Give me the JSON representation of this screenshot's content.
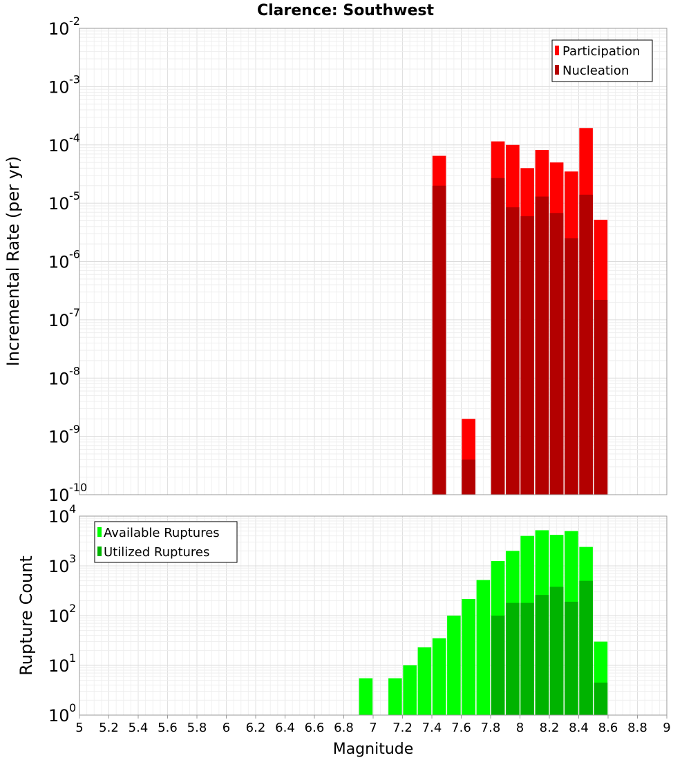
{
  "chart_data": [
    {
      "type": "bar",
      "title": "Clarence: Southwest",
      "xlabel": "",
      "ylabel": "Incremental Rate (per yr)",
      "yscale": "log",
      "ylim_exp": [
        -10,
        -2
      ],
      "xlim": [
        5,
        9
      ],
      "grid": true,
      "legend": "top-right",
      "x": [
        7.45,
        7.65,
        7.85,
        7.95,
        8.05,
        8.15,
        8.25,
        8.35,
        8.45,
        8.55
      ],
      "series": [
        {
          "name": "Participation",
          "color": "#ff0000",
          "values": [
            6.5e-05,
            2e-09,
            0.000115,
            0.0001,
            4e-05,
            8.2e-05,
            5e-05,
            3.5e-05,
            0.000195,
            5.2e-06
          ]
        },
        {
          "name": "Nucleation",
          "color": "#b30000",
          "values": [
            2e-05,
            4e-10,
            2.7e-05,
            8.5e-06,
            6e-06,
            1.3e-05,
            6.8e-06,
            2.5e-06,
            1.4e-05,
            2.2e-07
          ]
        }
      ]
    },
    {
      "type": "bar",
      "xlabel": "Magnitude",
      "ylabel": "Rupture Count",
      "yscale": "log",
      "ylim_exp": [
        0,
        4
      ],
      "xlim": [
        5,
        9
      ],
      "grid": true,
      "legend": "top-left",
      "x": [
        6.95,
        7.15,
        7.25,
        7.35,
        7.45,
        7.55,
        7.65,
        7.75,
        7.85,
        7.95,
        8.05,
        8.15,
        8.25,
        8.35,
        8.45,
        8.55
      ],
      "xticks": [
        "5",
        "5.2",
        "5.4",
        "5.6",
        "5.8",
        "6",
        "6.2",
        "6.4",
        "6.6",
        "6.8",
        "7",
        "7.2",
        "7.4",
        "7.6",
        "7.8",
        "8",
        "8.2",
        "8.4",
        "8.6",
        "8.8",
        "9"
      ],
      "series": [
        {
          "name": "Available Ruptures",
          "color": "#00ff00",
          "values": [
            5.5,
            5.5,
            10,
            23,
            35,
            100,
            215,
            520,
            1250,
            2000,
            4000,
            5200,
            4200,
            5000,
            2400,
            30
          ]
        },
        {
          "name": "Utilized Ruptures",
          "color": "#00b300",
          "values": [
            0,
            0,
            0,
            0,
            1,
            0,
            1,
            0,
            100,
            180,
            180,
            260,
            380,
            190,
            500,
            4.5
          ]
        }
      ]
    }
  ]
}
